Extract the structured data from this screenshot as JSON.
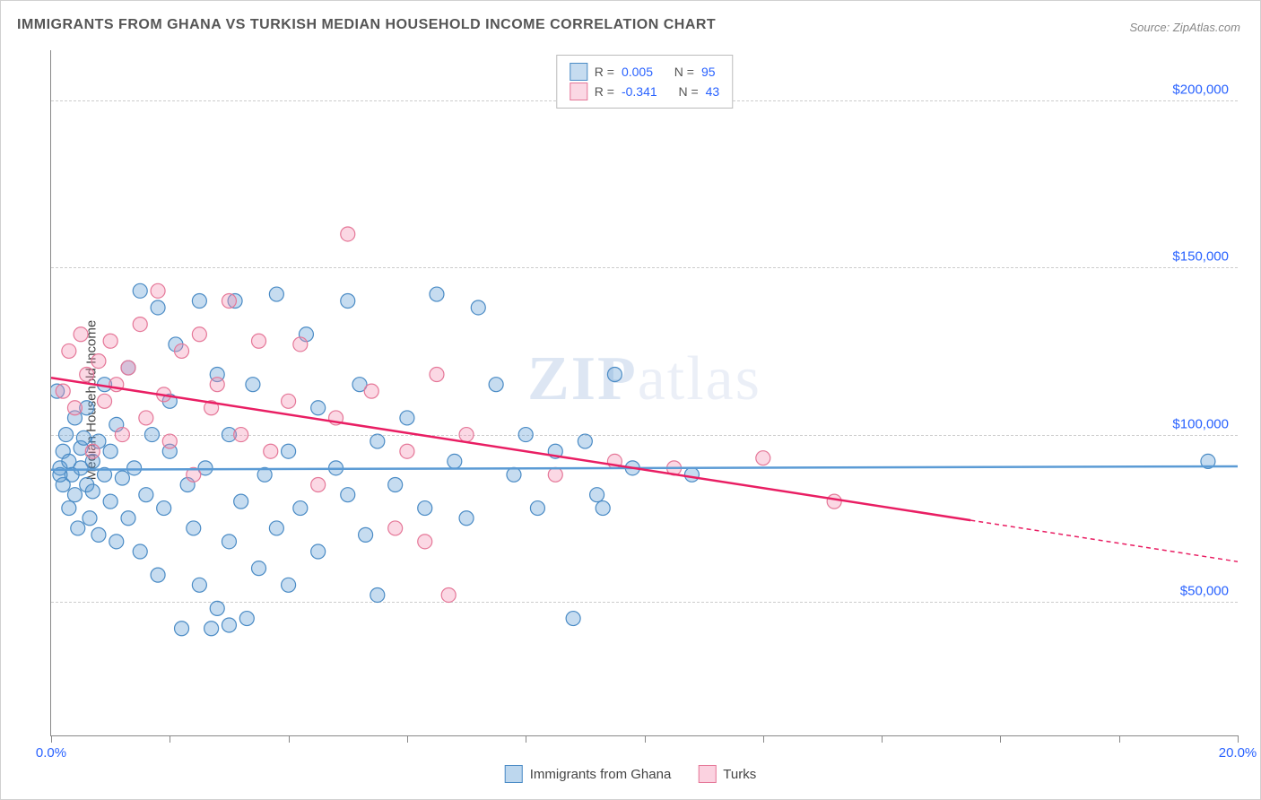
{
  "title": "IMMIGRANTS FROM GHANA VS TURKISH MEDIAN HOUSEHOLD INCOME CORRELATION CHART",
  "source_prefix": "Source: ",
  "source_name": "ZipAtlas.com",
  "ylabel": "Median Household Income",
  "watermark": {
    "bold": "ZIP",
    "rest": "atlas"
  },
  "chart": {
    "type": "scatter",
    "xlim": [
      0,
      20
    ],
    "ylim": [
      10000,
      215000
    ],
    "x_ticks": [
      0,
      2,
      4,
      6,
      8,
      10,
      12,
      14,
      16,
      18,
      20
    ],
    "x_tick_labels": {
      "0": "0.0%",
      "20": "20.0%"
    },
    "y_gridlines": [
      50000,
      100000,
      150000,
      200000
    ],
    "y_tick_labels": {
      "50000": "$50,000",
      "100000": "$100,000",
      "150000": "$150,000",
      "200000": "$200,000"
    },
    "grid_color": "#cccccc",
    "axis_color": "#888888",
    "background_color": "#ffffff",
    "tick_label_color": "#2962ff",
    "marker_radius": 8,
    "marker_stroke_width": 1.2,
    "marker_fill_opacity": 0.35,
    "line_width": 2.5,
    "series": [
      {
        "name": "Immigrants from Ghana",
        "color": "#5b9bd5",
        "fill": "rgba(91,155,213,0.35)",
        "stroke": "#4a8bc5",
        "R": "0.005",
        "N": "95",
        "regression": {
          "x1": 0,
          "y1": 89500,
          "x2": 20,
          "y2": 90500,
          "solid_until": 20
        },
        "points": [
          [
            0.1,
            113000
          ],
          [
            0.15,
            90000
          ],
          [
            0.2,
            95000
          ],
          [
            0.2,
            85000
          ],
          [
            0.25,
            100000
          ],
          [
            0.3,
            92000
          ],
          [
            0.3,
            78000
          ],
          [
            0.35,
            88000
          ],
          [
            0.4,
            105000
          ],
          [
            0.4,
            82000
          ],
          [
            0.45,
            72000
          ],
          [
            0.5,
            96000
          ],
          [
            0.5,
            90000
          ],
          [
            0.55,
            99000
          ],
          [
            0.6,
            85000
          ],
          [
            0.6,
            108000
          ],
          [
            0.65,
            75000
          ],
          [
            0.7,
            92000
          ],
          [
            0.7,
            83000
          ],
          [
            0.8,
            98000
          ],
          [
            0.8,
            70000
          ],
          [
            0.9,
            88000
          ],
          [
            0.9,
            115000
          ],
          [
            1.0,
            80000
          ],
          [
            1.0,
            95000
          ],
          [
            1.1,
            103000
          ],
          [
            1.1,
            68000
          ],
          [
            1.2,
            87000
          ],
          [
            1.3,
            120000
          ],
          [
            1.3,
            75000
          ],
          [
            1.4,
            90000
          ],
          [
            1.5,
            143000
          ],
          [
            1.5,
            65000
          ],
          [
            1.6,
            82000
          ],
          [
            1.7,
            100000
          ],
          [
            1.8,
            138000
          ],
          [
            1.8,
            58000
          ],
          [
            1.9,
            78000
          ],
          [
            2.0,
            95000
          ],
          [
            2.0,
            110000
          ],
          [
            2.1,
            127000
          ],
          [
            2.2,
            42000
          ],
          [
            2.3,
            85000
          ],
          [
            2.4,
            72000
          ],
          [
            2.5,
            140000
          ],
          [
            2.5,
            55000
          ],
          [
            2.6,
            90000
          ],
          [
            2.8,
            118000
          ],
          [
            2.8,
            48000
          ],
          [
            3.0,
            68000
          ],
          [
            3.0,
            100000
          ],
          [
            3.1,
            140000
          ],
          [
            3.2,
            80000
          ],
          [
            3.3,
            45000
          ],
          [
            3.4,
            115000
          ],
          [
            3.5,
            60000
          ],
          [
            3.6,
            88000
          ],
          [
            3.8,
            72000
          ],
          [
            3.8,
            142000
          ],
          [
            4.0,
            95000
          ],
          [
            4.0,
            55000
          ],
          [
            4.2,
            78000
          ],
          [
            4.3,
            130000
          ],
          [
            4.5,
            108000
          ],
          [
            4.5,
            65000
          ],
          [
            4.8,
            90000
          ],
          [
            5.0,
            82000
          ],
          [
            5.0,
            140000
          ],
          [
            5.2,
            115000
          ],
          [
            5.3,
            70000
          ],
          [
            5.5,
            98000
          ],
          [
            5.5,
            52000
          ],
          [
            5.8,
            85000
          ],
          [
            6.0,
            105000
          ],
          [
            6.3,
            78000
          ],
          [
            6.5,
            142000
          ],
          [
            6.8,
            92000
          ],
          [
            7.0,
            75000
          ],
          [
            7.2,
            138000
          ],
          [
            7.5,
            115000
          ],
          [
            7.8,
            88000
          ],
          [
            8.0,
            100000
          ],
          [
            8.2,
            78000
          ],
          [
            8.5,
            95000
          ],
          [
            8.8,
            45000
          ],
          [
            9.0,
            98000
          ],
          [
            9.2,
            82000
          ],
          [
            9.3,
            78000
          ],
          [
            9.5,
            118000
          ],
          [
            9.8,
            90000
          ],
          [
            10.8,
            88000
          ],
          [
            19.5,
            92000
          ],
          [
            2.7,
            42000
          ],
          [
            3.0,
            43000
          ],
          [
            0.15,
            88000
          ]
        ]
      },
      {
        "name": "Turks",
        "color": "#e91e63",
        "fill": "rgba(244,143,177,0.35)",
        "stroke": "#e57798",
        "R": "-0.341",
        "N": "43",
        "regression": {
          "x1": 0,
          "y1": 117000,
          "x2": 20,
          "y2": 62000,
          "solid_until": 15.5
        },
        "points": [
          [
            0.2,
            113000
          ],
          [
            0.3,
            125000
          ],
          [
            0.4,
            108000
          ],
          [
            0.5,
            130000
          ],
          [
            0.6,
            118000
          ],
          [
            0.7,
            95000
          ],
          [
            0.8,
            122000
          ],
          [
            0.9,
            110000
          ],
          [
            1.0,
            128000
          ],
          [
            1.1,
            115000
          ],
          [
            1.2,
            100000
          ],
          [
            1.3,
            120000
          ],
          [
            1.5,
            133000
          ],
          [
            1.6,
            105000
          ],
          [
            1.8,
            143000
          ],
          [
            1.9,
            112000
          ],
          [
            2.0,
            98000
          ],
          [
            2.2,
            125000
          ],
          [
            2.4,
            88000
          ],
          [
            2.5,
            130000
          ],
          [
            2.7,
            108000
          ],
          [
            2.8,
            115000
          ],
          [
            3.0,
            140000
          ],
          [
            3.2,
            100000
          ],
          [
            3.5,
            128000
          ],
          [
            3.7,
            95000
          ],
          [
            4.0,
            110000
          ],
          [
            4.2,
            127000
          ],
          [
            4.5,
            85000
          ],
          [
            4.8,
            105000
          ],
          [
            5.0,
            160000
          ],
          [
            5.4,
            113000
          ],
          [
            5.8,
            72000
          ],
          [
            6.0,
            95000
          ],
          [
            6.3,
            68000
          ],
          [
            6.5,
            118000
          ],
          [
            6.7,
            52000
          ],
          [
            7.0,
            100000
          ],
          [
            8.5,
            88000
          ],
          [
            9.5,
            92000
          ],
          [
            10.5,
            90000
          ],
          [
            12.0,
            93000
          ],
          [
            13.2,
            80000
          ]
        ]
      }
    ]
  },
  "legend_top": {
    "R_label": "R =",
    "N_label": "N ="
  },
  "legend_bottom": [
    {
      "label": "Immigrants from Ghana",
      "fill": "rgba(91,155,213,0.4)",
      "border": "#4a8bc5"
    },
    {
      "label": "Turks",
      "fill": "rgba(244,143,177,0.4)",
      "border": "#e57798"
    }
  ]
}
